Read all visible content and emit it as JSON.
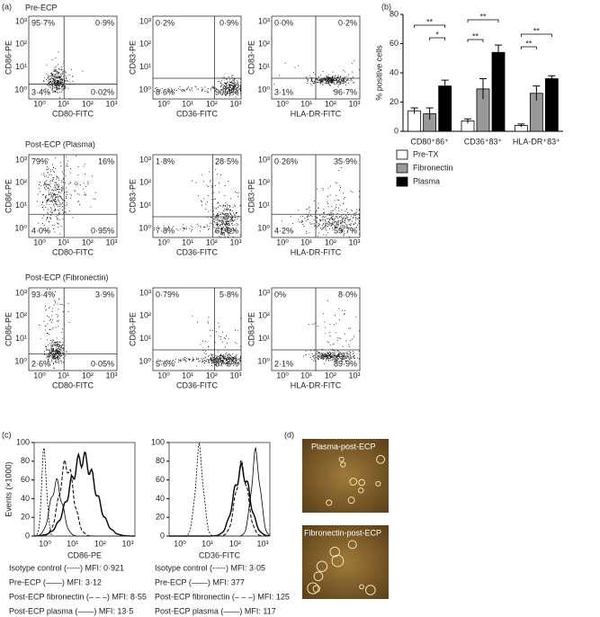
{
  "panel_labels": [
    "(a)",
    "(b)",
    "(c)",
    "(d)"
  ],
  "a": {
    "ticks": [
      "10⁰",
      "10¹",
      "10²",
      "10³"
    ],
    "rows": [
      {
        "title": "Pre-ECP",
        "plots": [
          {
            "y_label": "CD86-PE",
            "x_label": "CD80-FITC",
            "quadrants": [
              "95·7%",
              "0·9%",
              "3·4%",
              "0·02%"
            ]
          },
          {
            "y_label": "CD83-PE",
            "x_label": "CD36-FITC",
            "quadrants": [
              "0·2%",
              "0·9%",
              "8·6%",
              "90·4%"
            ]
          },
          {
            "y_label": "CD83-PE",
            "x_label": "HLA-DR-FITC",
            "quadrants": [
              "0·0%",
              "0·2%",
              "3·1%",
              "96·7%"
            ]
          }
        ]
      },
      {
        "title": "Post-ECP (Plasma)",
        "plots": [
          {
            "y_label": "CD86-PE",
            "x_label": "CD80-FITC",
            "quadrants": [
              "79%",
              "16%",
              "4·0%",
              "0·95%"
            ]
          },
          {
            "y_label": "CD83-PE",
            "x_label": "CD36-FITC",
            "quadrants": [
              "1·8%",
              "28·5%",
              "7·8%",
              "61·9%"
            ]
          },
          {
            "y_label": "CD83-PE",
            "x_label": "HLA-DR-FITC",
            "quadrants": [
              "0·26%",
              "35·9%",
              "4·2%",
              "59·7%"
            ]
          }
        ]
      },
      {
        "title": "Post-ECP (Fibronectin)",
        "plots": [
          {
            "y_label": "CD86-PE",
            "x_label": "CD80-FITC",
            "quadrants": [
              "93·4%",
              "3·9%",
              "2·6%",
              "0·05%"
            ]
          },
          {
            "y_label": "CD83-PE",
            "x_label": "CD36-FITC",
            "quadrants": [
              "0·79%",
              "5·8%",
              "5·6%",
              "87·6%"
            ]
          },
          {
            "y_label": "CD83-PE",
            "x_label": "HLA-DR-FITC",
            "quadrants": [
              "0%",
              "8·0%",
              "2·1%",
              "89·9%"
            ]
          }
        ]
      }
    ]
  },
  "chart_data": {
    "type": "bar",
    "y_label": "% positive cells",
    "categories": [
      "CD80⁺86⁺",
      "CD36⁺83⁺",
      "HLA-DR⁺83⁺"
    ],
    "series": [
      {
        "name": "Pre-TX",
        "color": "#ffffff",
        "values": [
          14,
          7,
          4
        ],
        "errors": [
          2,
          1.5,
          1
        ]
      },
      {
        "name": "Fibronectin",
        "color": "#999999",
        "values": [
          12,
          29,
          26
        ],
        "errors": [
          4,
          7,
          5
        ]
      },
      {
        "name": "Plasma",
        "color": "#000000",
        "values": [
          31,
          54,
          36
        ],
        "errors": [
          4,
          5,
          2
        ]
      }
    ],
    "ylim": [
      0,
      80
    ],
    "yticks": [
      0,
      20,
      40,
      60,
      80
    ],
    "significance": [
      "**",
      "*",
      "**",
      "**",
      "**",
      "**"
    ]
  },
  "c": {
    "y_label": "Events (×1000)",
    "ylim": [
      0,
      100
    ],
    "yticks": [
      0,
      20,
      40,
      60,
      80,
      100
    ],
    "xticks": [
      "10⁰",
      "10¹",
      "10²",
      "10³"
    ],
    "plots": [
      {
        "x_label": "CD86-PE",
        "legend": [
          "Isotype control (-----) MFI: 0·921",
          "Pre-ECP (——) MFI: 3·12",
          "Post-ECP fibronectin (– – –) MFI: 8·55",
          "Post-ECP plasma (——) MFI: 13·5"
        ]
      },
      {
        "x_label": "CD36-FITC",
        "legend": [
          "Isotype control (-----) MFI: 3·05",
          "Pre-ECP (——) MFI: 377",
          "Post-ECP fibronectin (– – –) MFI: 125",
          "Post-ECP plasma (——) MFI: 117"
        ]
      }
    ]
  },
  "d": {
    "captions": [
      "Plasma-post-ECP",
      "Fibronectin-post-ECP"
    ]
  }
}
